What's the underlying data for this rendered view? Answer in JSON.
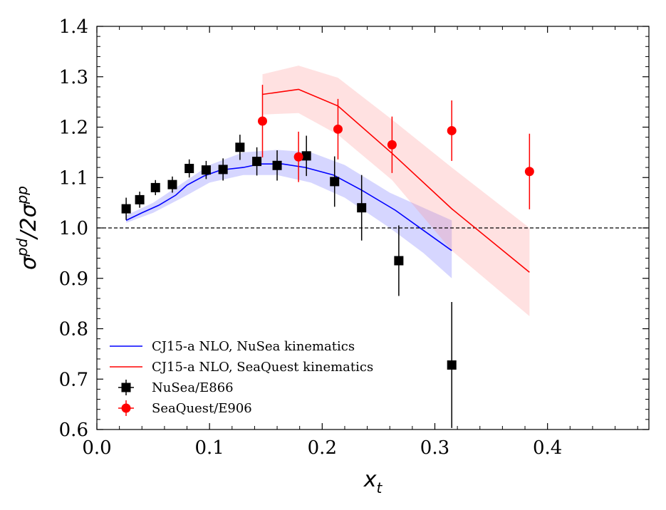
{
  "chart_data": {
    "type": "scatter",
    "title": "",
    "xlabel": "x",
    "xlabel_sub": "t",
    "ylabel_parts": {
      "sigma1": "σ",
      "sup1": "pd",
      "slash": "/2",
      "sigma2": "σ",
      "sup2": "pp"
    },
    "xlim": [
      0.0,
      0.49
    ],
    "ylim": [
      0.6,
      1.4
    ],
    "xticks": [
      {
        "value": 0.0,
        "label": "0.0"
      },
      {
        "value": 0.1,
        "label": "0.1"
      },
      {
        "value": 0.2,
        "label": "0.2"
      },
      {
        "value": 0.3,
        "label": "0.3"
      },
      {
        "value": 0.4,
        "label": "0.4"
      }
    ],
    "yticks": [
      {
        "value": 0.6,
        "label": "0.6"
      },
      {
        "value": 0.7,
        "label": "0.7"
      },
      {
        "value": 0.8,
        "label": "0.8"
      },
      {
        "value": 0.9,
        "label": "0.9"
      },
      {
        "value": 1.0,
        "label": "1.0"
      },
      {
        "value": 1.1,
        "label": "1.1"
      },
      {
        "value": 1.2,
        "label": "1.2"
      },
      {
        "value": 1.3,
        "label": "1.3"
      },
      {
        "value": 1.4,
        "label": "1.4"
      }
    ],
    "reference_line": {
      "y": 1.0,
      "style": "dashed"
    },
    "legend_position": "lower-left",
    "bands": [
      {
        "name": "NuSea band",
        "color": "#0000ff",
        "opacity": 0.16,
        "x": [
          0.026,
          0.05,
          0.08,
          0.1,
          0.13,
          0.16,
          0.19,
          0.22,
          0.26,
          0.29,
          0.315
        ],
        "lower": [
          1.01,
          1.03,
          1.065,
          1.09,
          1.105,
          1.105,
          1.09,
          1.06,
          1.0,
          0.95,
          0.9
        ],
        "upper": [
          1.025,
          1.05,
          1.095,
          1.125,
          1.15,
          1.155,
          1.15,
          1.125,
          1.07,
          1.04,
          1.015
        ]
      },
      {
        "name": "SeaQuest band",
        "color": "#ff8080",
        "opacity": 0.24,
        "x": [
          0.147,
          0.179,
          0.214,
          0.262,
          0.315,
          0.384
        ],
        "lower": [
          1.225,
          1.228,
          1.185,
          1.095,
          0.955,
          0.825
        ],
        "upper": [
          1.305,
          1.322,
          1.298,
          1.215,
          1.12,
          1.0
        ]
      }
    ],
    "series": [
      {
        "name": "CJ15-a NLO, NuSea kinematics",
        "kind": "line",
        "color": "#0000ff",
        "x": [
          0.026,
          0.04,
          0.055,
          0.07,
          0.08,
          0.095,
          0.11,
          0.13,
          0.145,
          0.165,
          0.185,
          0.21,
          0.235,
          0.265,
          0.29,
          0.315
        ],
        "y": [
          1.015,
          1.03,
          1.045,
          1.065,
          1.085,
          1.103,
          1.115,
          1.12,
          1.127,
          1.127,
          1.12,
          1.105,
          1.075,
          1.035,
          0.995,
          0.955
        ]
      },
      {
        "name": "CJ15-a NLO, SeaQuest kinematics",
        "kind": "line",
        "color": "#ff0000",
        "x": [
          0.147,
          0.179,
          0.214,
          0.262,
          0.315,
          0.384
        ],
        "y": [
          1.265,
          1.275,
          1.242,
          1.148,
          1.038,
          0.912
        ]
      },
      {
        "name": "NuSea/E866",
        "kind": "errorbar",
        "marker": "square",
        "color": "#000000",
        "x": [
          0.026,
          0.038,
          0.052,
          0.067,
          0.082,
          0.097,
          0.112,
          0.127,
          0.142,
          0.16,
          0.186,
          0.211,
          0.235,
          0.268,
          0.315
        ],
        "y": [
          1.038,
          1.056,
          1.08,
          1.086,
          1.118,
          1.115,
          1.116,
          1.16,
          1.132,
          1.124,
          1.143,
          1.092,
          1.04,
          0.935,
          0.728
        ],
        "err": [
          0.022,
          0.016,
          0.015,
          0.016,
          0.018,
          0.018,
          0.022,
          0.025,
          0.028,
          0.03,
          0.04,
          0.05,
          0.065,
          0.07,
          0.125
        ]
      },
      {
        "name": "SeaQuest/E906",
        "kind": "errorbar",
        "marker": "circle",
        "color": "#ff0000",
        "x": [
          0.147,
          0.179,
          0.214,
          0.262,
          0.315,
          0.384
        ],
        "y": [
          1.212,
          1.141,
          1.196,
          1.165,
          1.193,
          1.112
        ],
        "err": [
          0.072,
          0.05,
          0.06,
          0.056,
          0.06,
          0.075
        ]
      }
    ],
    "legend": [
      {
        "label": "CJ15-a NLO, NuSea kinematics",
        "kind": "line",
        "color": "#0000ff"
      },
      {
        "label": "CJ15-a NLO, SeaQuest kinematics",
        "kind": "line",
        "color": "#ff0000"
      },
      {
        "label": "NuSea/E866",
        "kind": "errorbar-square",
        "color": "#000000"
      },
      {
        "label": "SeaQuest/E906",
        "kind": "errorbar-circle",
        "color": "#ff0000"
      }
    ]
  }
}
